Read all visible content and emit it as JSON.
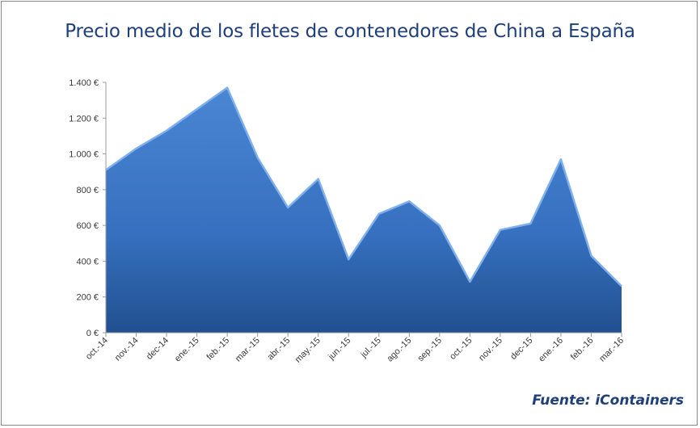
{
  "chart_data": {
    "type": "area",
    "title": "Precio medio de los fletes de contenedores de China a España",
    "source": "Fuente: iContainers",
    "categories": [
      "oct.-14",
      "nov.-14",
      "dec-14",
      "ene.-15",
      "feb.-15",
      "mar.-15",
      "abr.-15",
      "may.-15",
      "jun.-15",
      "jul.-15",
      "ago.-15",
      "sep.-15",
      "oct.-15",
      "nov.-15",
      "dec-15",
      "ene.-16",
      "feb.-16",
      "mar.-16"
    ],
    "values": [
      910,
      1030,
      1130,
      1250,
      1370,
      980,
      700,
      860,
      410,
      665,
      735,
      600,
      285,
      575,
      610,
      970,
      430,
      260
    ],
    "ylim": [
      0,
      1400
    ],
    "yticks": [
      0,
      200,
      400,
      600,
      800,
      1000,
      1200,
      1400
    ],
    "ytick_labels": [
      "0 €",
      "200 €",
      "400 €",
      "600 €",
      "800 €",
      "1.000 €",
      "1.200 €",
      "1.400 €"
    ],
    "xlabel": "",
    "ylabel": "",
    "grid": false,
    "colors": {
      "area": "#3f78c9",
      "area_dark": "#234e93",
      "title": "#1f3f7a",
      "axis": "#9a9a9a"
    }
  }
}
